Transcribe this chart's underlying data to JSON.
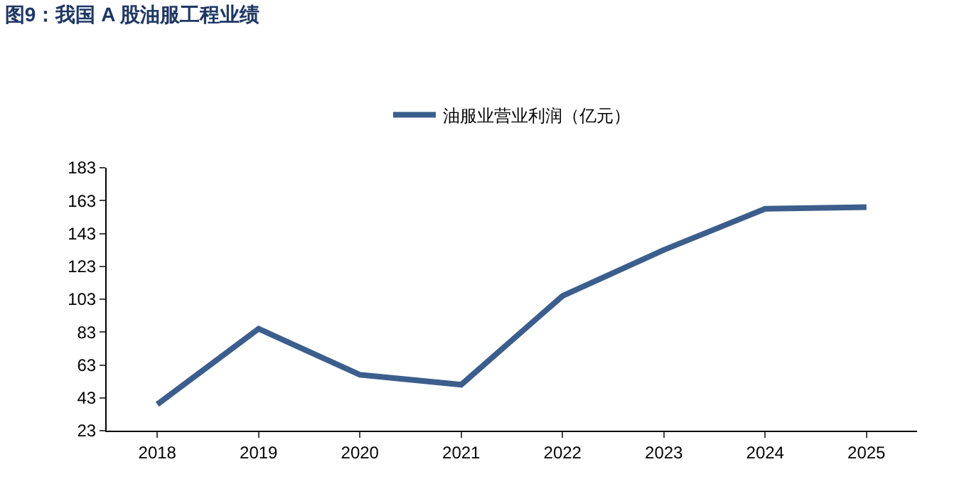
{
  "chart_data": {
    "type": "line",
    "title": "图9：我国 A 股油服工程业绩",
    "categories": [
      "2018",
      "2019",
      "2020",
      "2021",
      "2022",
      "2023",
      "2024",
      "2025"
    ],
    "series": [
      {
        "name": "油服业营业利润（亿元）",
        "color": "#3b5e8c",
        "values": [
          39,
          85,
          57,
          51,
          105,
          133,
          158,
          159
        ]
      }
    ],
    "ylim": [
      23,
      183
    ],
    "yticks": [
      23,
      43,
      63,
      83,
      103,
      123,
      143,
      163,
      183
    ],
    "legend": "top",
    "marker": "none",
    "line_style": "solid"
  }
}
